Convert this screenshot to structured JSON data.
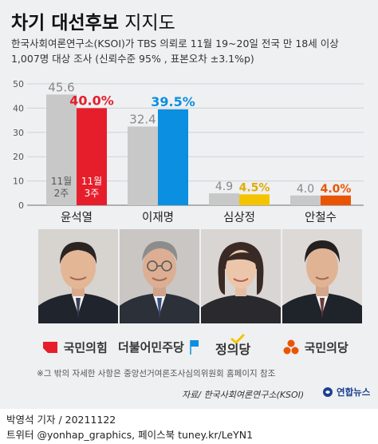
{
  "title": {
    "bold": "차기 대선후보",
    "light": "지지도"
  },
  "subtitle_lines": [
    "한국사회여론연구소(KSOI)가 TBS 의뢰로 11월 19~20일 전국 만 18세 이상",
    "1,007명 대상 조사 (신뢰수준 95% , 표본오차 ±3.1%p)"
  ],
  "chart_data": {
    "type": "bar",
    "categories": [
      "윤석열",
      "이재명",
      "심상정",
      "안철수"
    ],
    "series": [
      {
        "name": "11월 2주",
        "values": [
          45.6,
          32.4,
          4.9,
          4.0
        ]
      },
      {
        "name": "11월 3주",
        "values": [
          40.0,
          39.5,
          4.5,
          4.0
        ]
      }
    ],
    "value_labels": [
      [
        "45.6",
        "32.4",
        "4.9",
        "4.0"
      ],
      [
        "40.0%",
        "39.5%",
        "4.5%",
        "4.0%"
      ]
    ],
    "series_inline_labels": [
      [
        "11월",
        "2주"
      ],
      [
        "11월",
        "3주"
      ]
    ],
    "yticks": [
      0,
      10,
      20,
      30,
      40,
      50
    ],
    "ylim": [
      0,
      50
    ],
    "grid": true,
    "legend": "inline in first bar group",
    "colors": {
      "previous": "#c8c8c8",
      "current_by_candidate": [
        "#e61e2b",
        "#0b8fe0",
        "#f5c400",
        "#ea5504"
      ]
    }
  },
  "candidates": [
    {
      "name": "윤석열",
      "party": "국민의힘",
      "party_color": "#e61e2b"
    },
    {
      "name": "이재명",
      "party": "더불어민주당",
      "party_color": "#0b8fe0"
    },
    {
      "name": "심상정",
      "party": "정의당",
      "party_color": "#111111"
    },
    {
      "name": "안철수",
      "party": "국민의당",
      "party_color": "#ea5504"
    }
  ],
  "footnote": "※그 밖의 자세한 사항은 중앙선거여론조사심의위원회 홈페이지 참조",
  "source": "자료/ 한국사회여론연구소(KSOI)",
  "agency": "연합뉴스",
  "credits": [
    "박영석 기자 /  20211122",
    "트위터 @yonhap_graphics, 페이스북 tuney.kr/LeYN1"
  ]
}
